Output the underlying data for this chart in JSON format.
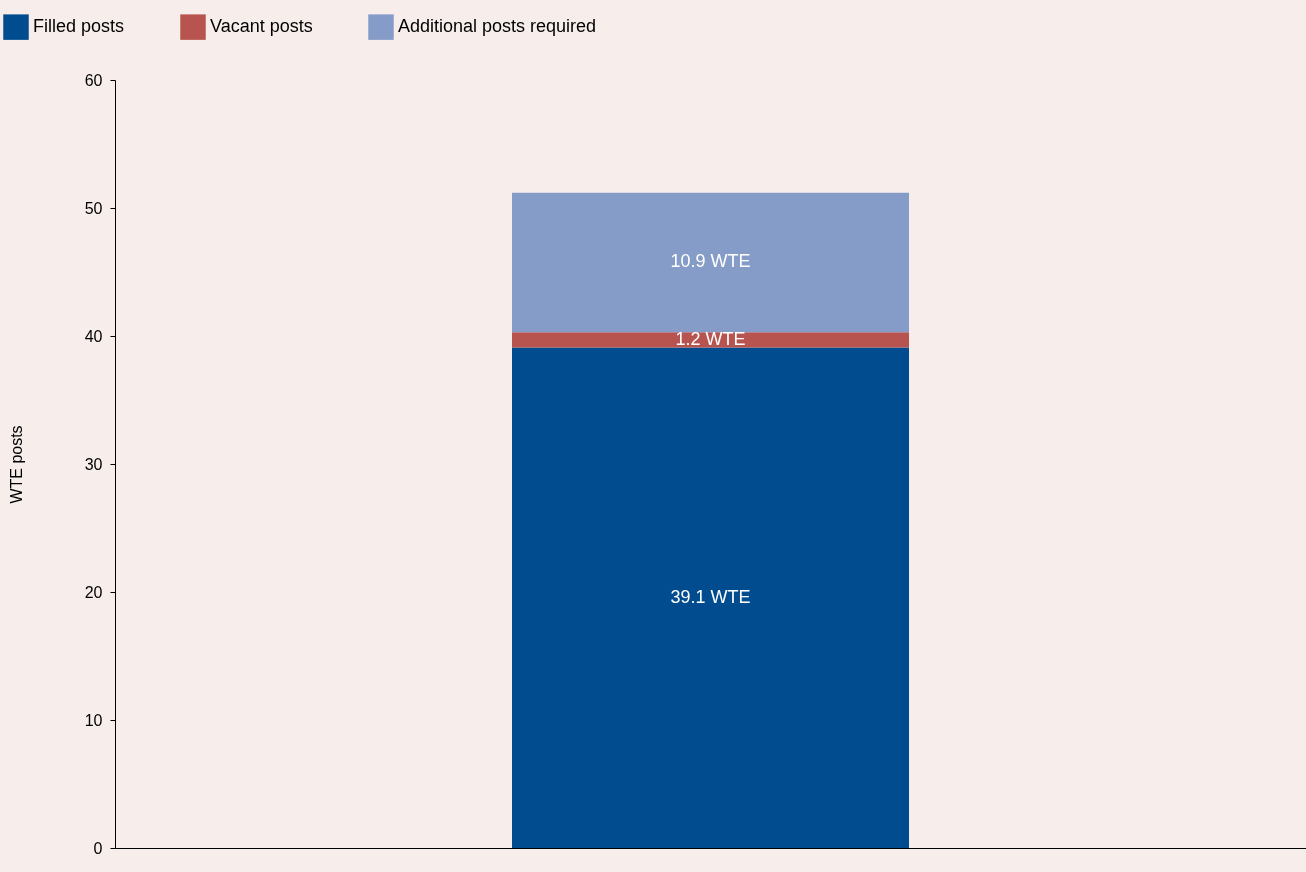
{
  "chart_data": {
    "type": "bar",
    "stacked": true,
    "ylabel": "WTE posts",
    "categories": [
      null
    ],
    "series": [
      {
        "name": "Filled posts",
        "color": "#004c8f",
        "values": [
          39.1
        ],
        "value_labels": [
          "39.1 WTE"
        ]
      },
      {
        "name": "Vacant posts",
        "color": "#b85450",
        "values": [
          1.2
        ],
        "value_labels": [
          "1.2 WTE"
        ]
      },
      {
        "name": "Additional posts required",
        "color": "#869cc8",
        "values": [
          10.9
        ],
        "value_labels": [
          "10.9 WTE"
        ]
      }
    ],
    "ylim": [
      0,
      60
    ],
    "yticks": [
      0,
      10,
      20,
      30,
      40,
      50,
      60
    ],
    "legend": "top left",
    "tick_labels": "y"
  }
}
